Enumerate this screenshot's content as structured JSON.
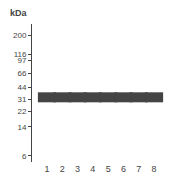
{
  "chart_data": {
    "type": "scatter",
    "y_label": "kDa",
    "categories": [
      "1",
      "2",
      "3",
      "4",
      "5",
      "6",
      "7",
      "8"
    ],
    "values": [
      33,
      33,
      33,
      33,
      33,
      33,
      33,
      33
    ],
    "color": "#444444",
    "marker": "line-ew",
    "log": "y",
    "ylim": [
      5,
      280
    ],
    "yticks": [
      200,
      116,
      97,
      66,
      44,
      31,
      22,
      14,
      6
    ],
    "grid": false
  }
}
